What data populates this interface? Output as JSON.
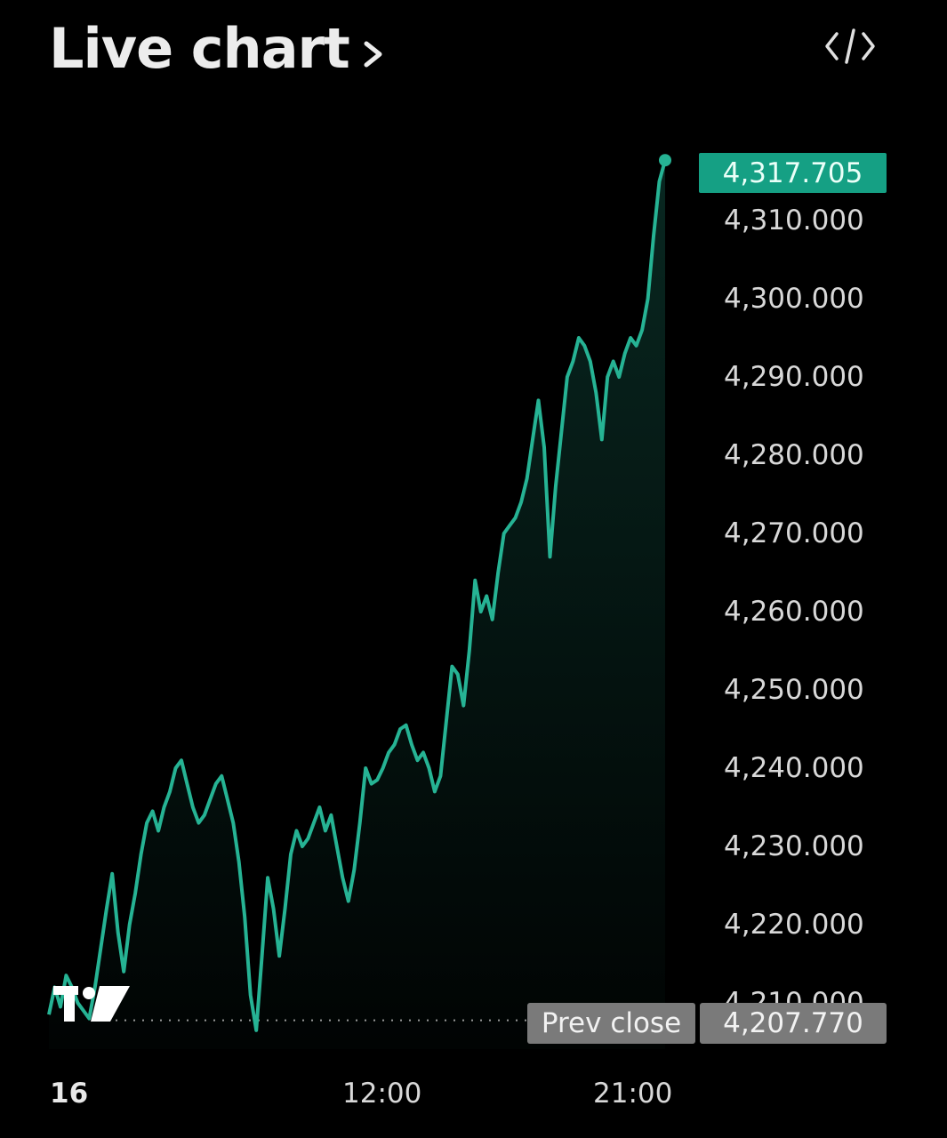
{
  "header": {
    "title": "Live chart",
    "title_icon": "chevron-right-icon",
    "embed_icon": "code-embed-icon"
  },
  "colors": {
    "background": "#000000",
    "line": "#26b394",
    "badge": "#15a084",
    "prev_close_badge": "#7a7a7a"
  },
  "current_price_label": "4,317.705",
  "prev_close": {
    "label": "Prev close",
    "value_label": "4,207.770"
  },
  "branding": {
    "logo_icon": "tradingview-logo-icon"
  },
  "chart_data": {
    "type": "area",
    "x_ticks": [
      "16",
      "12:00",
      "21:00"
    ],
    "y_ticks": [
      "4,310.000",
      "4,300.000",
      "4,290.000",
      "4,280.000",
      "4,270.000",
      "4,260.000",
      "4,250.000",
      "4,240.000",
      "4,230.000",
      "4,220.000",
      "4,210.000"
    ],
    "ylim": [
      4206,
      4319
    ],
    "current_price": 4317.705,
    "prev_close": 4207.77,
    "series": [
      {
        "values": [
          4208.5,
          4212.0,
          4209.5,
          4213.5,
          4212.0,
          4210.0,
          4209.0,
          4208.0,
          4212.0,
          4217.0,
          4222.0,
          4226.5,
          4219.0,
          4214.0,
          4220.0,
          4224.0,
          4229.0,
          4233.0,
          4234.5,
          4232.0,
          4235.0,
          4237.0,
          4240.0,
          4241.0,
          4238.0,
          4235.0,
          4233.0,
          4234.0,
          4236.0,
          4238.0,
          4239.0,
          4236.0,
          4233.0,
          4228.0,
          4221.0,
          4211.0,
          4206.5,
          4216.0,
          4226.0,
          4222.0,
          4216.0,
          4222.0,
          4229.0,
          4232.0,
          4230.0,
          4231.0,
          4233.0,
          4235.0,
          4232.0,
          4234.0,
          4230.0,
          4226.0,
          4223.0,
          4227.0,
          4233.0,
          4240.0,
          4238.0,
          4238.5,
          4240.0,
          4242.0,
          4243.0,
          4245.0,
          4245.5,
          4243.0,
          4241.0,
          4242.0,
          4240.0,
          4237.0,
          4239.0,
          4246.0,
          4253.0,
          4252.0,
          4248.0,
          4255.0,
          4264.0,
          4260.0,
          4262.0,
          4259.0,
          4265.0,
          4270.0,
          4271.0,
          4272.0,
          4274.0,
          4277.0,
          4282.0,
          4287.0,
          4281.0,
          4267.0,
          4276.0,
          4283.0,
          4290.0,
          4292.0,
          4295.0,
          4294.0,
          4292.0,
          4288.0,
          4282.0,
          4290.0,
          4292.0,
          4290.0,
          4293.0,
          4295.0,
          4294.0,
          4296.0,
          4300.0,
          4308.0,
          4315.0,
          4317.705
        ]
      }
    ]
  }
}
